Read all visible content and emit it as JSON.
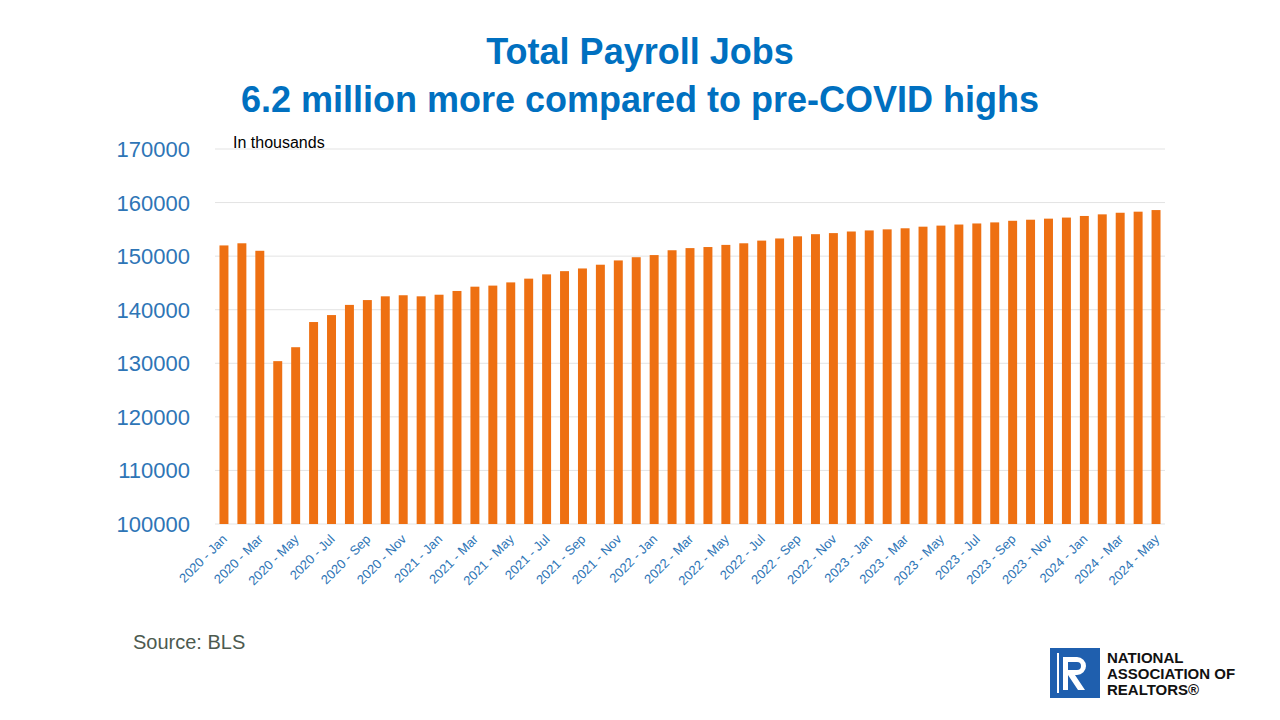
{
  "chart_data": {
    "type": "bar",
    "title": "Total Payroll Jobs",
    "subtitle": "6.2 million more compared to pre-COVID highs",
    "annotations": [
      "In thousands"
    ],
    "source": "Source: BLS",
    "logo": [
      "NATIONAL",
      "ASSOCIATION OF",
      "REALTORS®"
    ],
    "categories": [
      "2020 - Jan",
      null,
      "2020 - Mar",
      null,
      "2020 - May",
      null,
      "2020 - Jul",
      null,
      "2020 - Sep",
      null,
      "2020 - Nov",
      null,
      "2021 - Jan",
      null,
      "2021 - Mar",
      null,
      "2021 - May",
      null,
      "2021 - Jul",
      null,
      "2021 - Sep",
      null,
      "2021 - Nov",
      null,
      "2022 - Jan",
      null,
      "2022 - Mar",
      null,
      "2022 - May",
      null,
      "2022 - Jul",
      null,
      "2022 - Sep",
      null,
      "2022 - Nov",
      null,
      "2023 - Jan",
      null,
      "2023 - Mar",
      null,
      "2023 - May",
      null,
      "2023 - Jul",
      null,
      "2023 - Sep",
      null,
      "2023 - Nov",
      null,
      "2024 - Jan",
      null,
      "2024 - Mar",
      null,
      "2024 - May"
    ],
    "values": [
      152000,
      152400,
      151000,
      130400,
      133000,
      137700,
      139000,
      140900,
      141800,
      142500,
      142700,
      142500,
      142800,
      143500,
      144300,
      144500,
      145100,
      145800,
      146600,
      147200,
      147700,
      148400,
      149200,
      149800,
      150200,
      151100,
      151500,
      151700,
      152100,
      152400,
      152900,
      153300,
      153700,
      154100,
      154300,
      154600,
      154800,
      155000,
      155200,
      155500,
      155700,
      155900,
      156100,
      156300,
      156600,
      156800,
      157000,
      157200,
      157500,
      157800,
      158100,
      158300,
      158600
    ],
    "color": "#ee7012",
    "ylim": [
      100000,
      170000
    ],
    "yticks": [
      100000,
      110000,
      120000,
      130000,
      140000,
      150000,
      160000,
      170000
    ],
    "grid": true
  }
}
